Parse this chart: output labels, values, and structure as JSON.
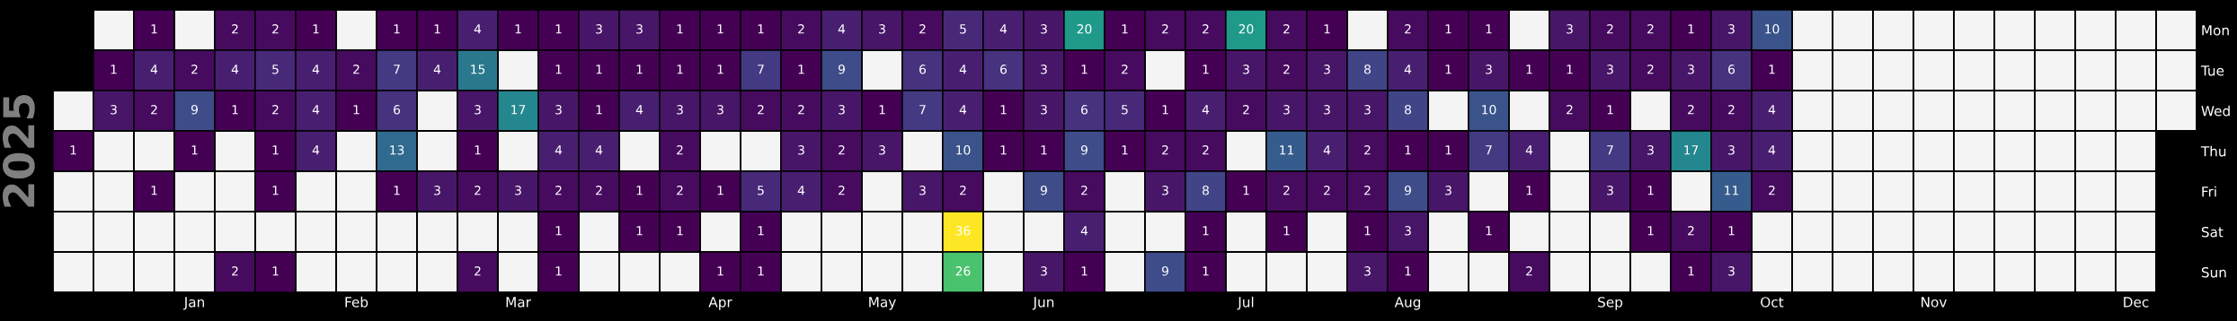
{
  "chart_data": {
    "type": "heatmap",
    "ylabel": "2025",
    "categories": [
      null,
      null,
      null,
      "Jan",
      null,
      null,
      null,
      "Feb",
      null,
      null,
      null,
      "Mar",
      null,
      null,
      null,
      null,
      "Apr",
      null,
      null,
      null,
      "May",
      null,
      null,
      null,
      "Jun",
      null,
      null,
      null,
      null,
      "Jul",
      null,
      null,
      null,
      "Aug",
      null,
      null,
      null,
      null,
      "Sep",
      null,
      null,
      null,
      "Oct",
      null,
      null,
      null,
      "Nov",
      null,
      null,
      null,
      null,
      "Dec",
      null
    ],
    "y_categories": [
      "Mon",
      "Tue",
      "Wed",
      "Thu",
      "Fri",
      "Sat",
      "Sun"
    ],
    "cells": [
      [
        null,
        null,
        1,
        null,
        2,
        2,
        1,
        null,
        1,
        1,
        4,
        1,
        1,
        3,
        3,
        1,
        1,
        1,
        2,
        4,
        3,
        2,
        5,
        4,
        3,
        20,
        1,
        2,
        2,
        20,
        2,
        1,
        null,
        2,
        1,
        1,
        null,
        3,
        2,
        2,
        1,
        3,
        10,
        null,
        null,
        null,
        null,
        null,
        null,
        null,
        null,
        null,
        null
      ],
      [
        null,
        1,
        4,
        2,
        4,
        5,
        4,
        2,
        7,
        4,
        15,
        null,
        1,
        1,
        1,
        1,
        1,
        7,
        1,
        9,
        null,
        6,
        4,
        6,
        3,
        1,
        2,
        null,
        1,
        3,
        2,
        3,
        8,
        4,
        1,
        3,
        1,
        1,
        3,
        2,
        3,
        6,
        1,
        null,
        null,
        null,
        null,
        null,
        null,
        null,
        null,
        null,
        null
      ],
      [
        null,
        3,
        2,
        9,
        1,
        2,
        4,
        1,
        6,
        null,
        3,
        17,
        3,
        1,
        4,
        3,
        3,
        2,
        2,
        3,
        1,
        7,
        4,
        1,
        3,
        6,
        5,
        1,
        4,
        2,
        3,
        3,
        3,
        8,
        null,
        10,
        null,
        2,
        1,
        null,
        2,
        2,
        4,
        null,
        null,
        null,
        null,
        null,
        null,
        null,
        null,
        null,
        null
      ],
      [
        1,
        null,
        null,
        1,
        null,
        1,
        4,
        null,
        13,
        null,
        1,
        null,
        4,
        4,
        null,
        2,
        null,
        null,
        3,
        2,
        3,
        null,
        10,
        1,
        1,
        9,
        1,
        2,
        2,
        null,
        11,
        4,
        2,
        1,
        1,
        7,
        4,
        null,
        7,
        3,
        17,
        3,
        4,
        null,
        null,
        null,
        null,
        null,
        null,
        null,
        null,
        null,
        null
      ],
      [
        null,
        null,
        1,
        null,
        null,
        1,
        null,
        null,
        1,
        3,
        2,
        3,
        2,
        2,
        1,
        2,
        1,
        5,
        4,
        2,
        null,
        3,
        2,
        null,
        9,
        2,
        null,
        3,
        8,
        1,
        2,
        2,
        2,
        9,
        3,
        null,
        1,
        null,
        3,
        1,
        null,
        11,
        2,
        null,
        null,
        null,
        null,
        null,
        null,
        null,
        null,
        null,
        null
      ],
      [
        null,
        null,
        null,
        null,
        null,
        null,
        null,
        null,
        null,
        null,
        null,
        null,
        1,
        null,
        1,
        1,
        null,
        1,
        null,
        null,
        null,
        null,
        36,
        null,
        null,
        4,
        null,
        null,
        1,
        null,
        1,
        null,
        1,
        3,
        null,
        1,
        null,
        null,
        null,
        1,
        2,
        1,
        null,
        null,
        null,
        null,
        null,
        null,
        null,
        null,
        null,
        null,
        null
      ],
      [
        null,
        null,
        null,
        null,
        2,
        1,
        null,
        null,
        null,
        null,
        2,
        null,
        1,
        null,
        null,
        null,
        1,
        1,
        null,
        null,
        null,
        null,
        26,
        null,
        3,
        1,
        null,
        9,
        1,
        null,
        null,
        null,
        3,
        1,
        null,
        null,
        2,
        null,
        null,
        null,
        1,
        3,
        null,
        null,
        null,
        null,
        null,
        null,
        null,
        null,
        null,
        null,
        null
      ]
    ],
    "data_labels": true
  }
}
